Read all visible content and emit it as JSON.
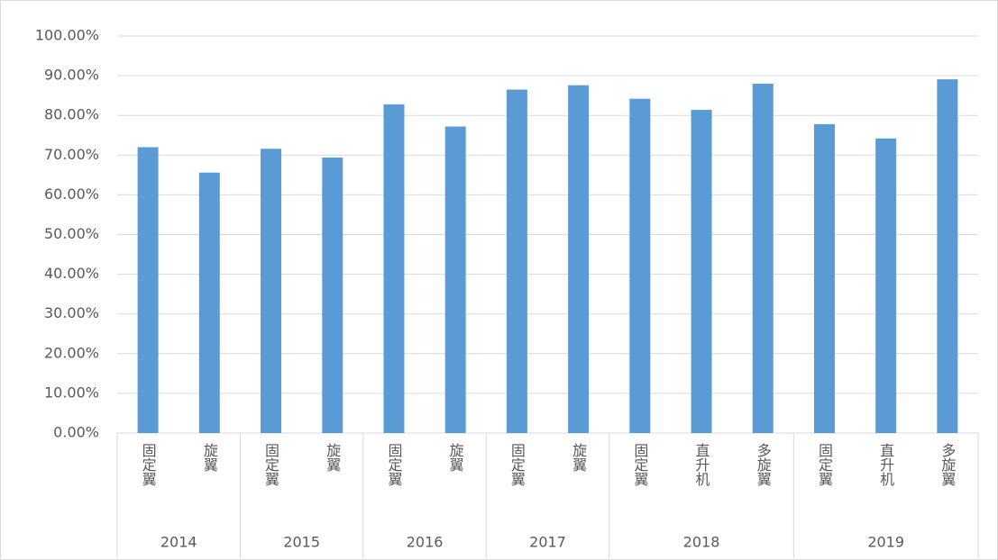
{
  "chart_data": {
    "type": "bar",
    "color": "#5b9bd5",
    "grid": true,
    "ylim": [
      0,
      100
    ],
    "yticks": [
      {
        "value": 0,
        "label": "0.00%"
      },
      {
        "value": 10,
        "label": "10.00%"
      },
      {
        "value": 20,
        "label": "20.00%"
      },
      {
        "value": 30,
        "label": "30.00%"
      },
      {
        "value": 40,
        "label": "40.00%"
      },
      {
        "value": 50,
        "label": "50.00%"
      },
      {
        "value": 60,
        "label": "60.00%"
      },
      {
        "value": 70,
        "label": "70.00%"
      },
      {
        "value": 80,
        "label": "80.00%"
      },
      {
        "value": 90,
        "label": "90.00%"
      },
      {
        "value": 100,
        "label": "100.00%"
      }
    ],
    "groups": [
      {
        "name": "2014",
        "categories": [
          "固定翼",
          "旋翼"
        ],
        "values": [
          72,
          65.6
        ]
      },
      {
        "name": "2015",
        "categories": [
          "固定翼",
          "旋翼"
        ],
        "values": [
          71.6,
          69.4
        ]
      },
      {
        "name": "2016",
        "categories": [
          "固定翼",
          "旋翼"
        ],
        "values": [
          82.8,
          77.2
        ]
      },
      {
        "name": "2017",
        "categories": [
          "固定翼",
          "旋翼"
        ],
        "values": [
          86.5,
          87.6
        ]
      },
      {
        "name": "2018",
        "categories": [
          "固定翼",
          "直升机",
          "多旋翼"
        ],
        "values": [
          84.2,
          81.4,
          88
        ]
      },
      {
        "name": "2019",
        "categories": [
          "固定翼",
          "直升机",
          "多旋翼"
        ],
        "values": [
          77.8,
          74.2,
          89.1
        ]
      }
    ]
  }
}
